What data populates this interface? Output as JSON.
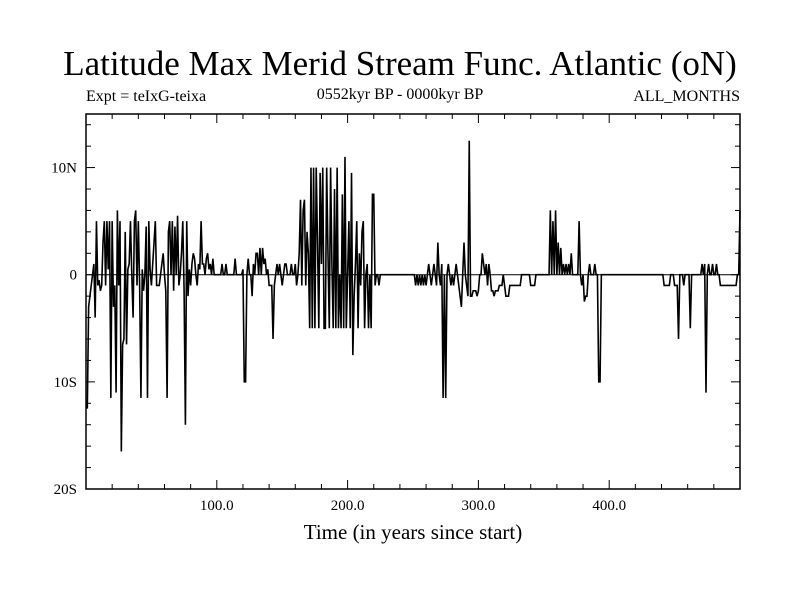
{
  "header": {
    "title": "Latitude Max Merid Stream Func. Atlantic (oN)",
    "expt": "Expt = teIxG-teixa",
    "period": "0552kyr BP - 0000kyr BP",
    "months": "ALL_MONTHS"
  },
  "chart_data": {
    "type": "line",
    "title": "Latitude Max Merid Stream Func. Atlantic (oN)",
    "xlabel": "Time (in years since start)",
    "ylabel": "",
    "xlim": [
      0,
      500
    ],
    "ylim": [
      -20,
      15
    ],
    "grid": false,
    "x_ticks": [
      {
        "value": 100,
        "label": "100.0"
      },
      {
        "value": 200,
        "label": "200.0"
      },
      {
        "value": 300,
        "label": "300.0"
      },
      {
        "value": 400,
        "label": "400.0"
      }
    ],
    "y_ticks": [
      {
        "value": 10,
        "label": "10N"
      },
      {
        "value": 0,
        "label": "0"
      },
      {
        "value": -10,
        "label": "10S"
      },
      {
        "value": -20,
        "label": "20S"
      }
    ],
    "series": [
      {
        "color": "#000000",
        "x_start": 1,
        "x_step": 1,
        "values": [
          -12.5,
          -3.0,
          -2.0,
          -1.0,
          0.0,
          1.0,
          -4.0,
          5.0,
          -1.0,
          -0.5,
          -1.5,
          -1.0,
          3.0,
          5.0,
          -1.0,
          5.0,
          0.5,
          5.0,
          -11.5,
          5.0,
          -3.0,
          -1.0,
          -11.0,
          6.0,
          -1.0,
          5.0,
          -16.5,
          -6.5,
          -6.0,
          4.0,
          -6.5,
          0.5,
          1.0,
          5.0,
          0.0,
          -4.0,
          5.0,
          6.0,
          -1.0,
          5.0,
          -1.0,
          -11.5,
          0.5,
          -1.5,
          0.0,
          4.5,
          -11.5,
          5.0,
          0.5,
          -1.0,
          1.0,
          3.0,
          5.0,
          -1.0,
          -1.0,
          -1.0,
          0.0,
          1.0,
          2.0,
          0.0,
          -1.5,
          -11.5,
          4.0,
          5.0,
          0.0,
          5.0,
          -1.5,
          4.5,
          0.0,
          5.5,
          -1.0,
          0.0,
          2.0,
          5.0,
          -1.5,
          -14.0,
          5.0,
          -2.0,
          0.5,
          -1.0,
          1.0,
          2.0,
          1.5,
          0.0,
          -1.0,
          1.0,
          0.5,
          5.0,
          1.0,
          1.0,
          0.0,
          1.5,
          2.0,
          0.5,
          1.0,
          0.0,
          1.5,
          0.0,
          0.0,
          0.0,
          0.0,
          0.0,
          0.0,
          1.0,
          0.0,
          0.0,
          1.0,
          0.0,
          0.0,
          0.0,
          0.0,
          0.0,
          0.0,
          1.5,
          0.0,
          0.0,
          0.0,
          0.0,
          0.0,
          0.5,
          -10.0,
          -10.0,
          0.0,
          1.5,
          0.0,
          0.0,
          -2.0,
          1.0,
          0.0,
          2.0,
          2.0,
          0.0,
          2.5,
          0.0,
          2.5,
          1.0,
          1.5,
          0.0,
          0.5,
          -1.0,
          -1.0,
          -1.0,
          -6.0,
          -1.0,
          0.0,
          1.0,
          0.0,
          1.0,
          0.0,
          -1.0,
          0.0,
          1.0,
          1.0,
          0.0,
          0.0,
          0.0,
          1.0,
          0.0,
          0.0,
          1.0,
          -1.0,
          0.0,
          2.0,
          7.0,
          -1.0,
          6.0,
          7.0,
          -1.0,
          4.0,
          2.0,
          -5.0,
          10.0,
          -5.0,
          10.0,
          -5.0,
          10.0,
          3.0,
          -5.0,
          9.5,
          1.0,
          10.0,
          -5.0,
          -5.0,
          10.0,
          2.0,
          -5.0,
          10.0,
          1.0,
          -5.0,
          8.0,
          -5.0,
          10.0,
          -5.0,
          0.0,
          -5.0,
          7.5,
          -5.0,
          11.0,
          -5.0,
          0.0,
          5.0,
          -5.0,
          9.5,
          -7.5,
          -2.0,
          1.0,
          5.0,
          -5.0,
          2.0,
          -1.0,
          4.0,
          5.0,
          -5.0,
          0.0,
          1.0,
          -5.0,
          0.0,
          -5.0,
          7.5,
          7.5,
          -1.0,
          0.0,
          0.0,
          -1.0,
          0.0,
          0.0,
          0.0,
          0.0,
          0.0,
          0.0,
          0.0,
          0.0,
          0.0,
          0.0,
          0.0,
          0.0,
          0.0,
          0.0,
          0.0,
          0.0,
          0.0,
          0.0,
          0.0,
          0.0,
          0.0,
          0.0,
          0.0,
          0.0,
          0.0,
          0.0,
          0.0,
          -1.0,
          0.0,
          -1.0,
          0.0,
          -1.0,
          0.0,
          -1.0,
          0.0,
          -1.0,
          0.0,
          1.0,
          0.0,
          -1.0,
          0.0,
          1.0,
          0.0,
          -1.0,
          3.0,
          0.0,
          -1.0,
          1.0,
          -11.5,
          0.0,
          -11.5,
          0.0,
          1.0,
          0.0,
          -1.0,
          0.0,
          -1.0,
          0.0,
          1.0,
          0.0,
          -1.0,
          -2.0,
          -3.0,
          0.0,
          3.0,
          0.0,
          -1.0,
          -2.0,
          12.5,
          -2.0,
          -2.0,
          -1.5,
          -1.5,
          -1.5,
          -2.0,
          -1.5,
          0.0,
          0.0,
          2.0,
          1.0,
          0.0,
          1.0,
          -1.0,
          1.0,
          0.0,
          -1.5,
          -1.5,
          -2.0,
          -1.5,
          -1.5,
          -1.5,
          -1.0,
          -1.0,
          -1.0,
          0.0,
          -1.0,
          -2.0,
          -2.0,
          -2.0,
          -1.0,
          -1.0,
          -1.0,
          -1.0,
          -1.0,
          -1.0,
          -1.0,
          -1.0,
          -1.0,
          0.0,
          0.0,
          0.0,
          0.0,
          0.0,
          0.0,
          0.0,
          -1.0,
          -1.0,
          -1.0,
          -1.0,
          0.0,
          0.0,
          0.0,
          0.0,
          0.0,
          0.0,
          0.0,
          0.0,
          0.0,
          0.0,
          0.0,
          6.0,
          0.0,
          5.0,
          0.0,
          6.0,
          0.0,
          3.0,
          0.0,
          2.5,
          0.0,
          1.0,
          0.0,
          1.0,
          0.0,
          1.0,
          0.0,
          2.0,
          0.0,
          0.0,
          0.0,
          0.0,
          0.0,
          5.0,
          0.0,
          -1.0,
          0.0,
          -2.5,
          -2.0,
          -2.0,
          0.0,
          1.0,
          0.0,
          0.0,
          0.0,
          1.0,
          0.0,
          0.0,
          -10.0,
          -10.0,
          0.0,
          0.0,
          0.0,
          0.0,
          0.0,
          0.0,
          0.0,
          0.0,
          0.0,
          0.0,
          0.0,
          0.0,
          0.0,
          0.0,
          0.0,
          0.0,
          0.0,
          0.0,
          0.0,
          0.0,
          0.0,
          0.0,
          0.0,
          0.0,
          0.0,
          0.0,
          0.0,
          0.0,
          0.0,
          0.0,
          0.0,
          0.0,
          0.0,
          0.0,
          0.0,
          0.0,
          0.0,
          0.0,
          0.0,
          0.0,
          0.0,
          0.0,
          0.0,
          0.0,
          0.0,
          0.0,
          0.0,
          0.0,
          -1.0,
          -1.0,
          -1.0,
          -1.0,
          -1.0,
          0.0,
          0.0,
          0.0,
          -1.0,
          -1.0,
          -1.0,
          -6.0,
          0.0,
          0.0,
          0.0,
          -1.0,
          0.0,
          0.0,
          0.0,
          0.0,
          -5.0,
          0.0,
          0.0,
          0.0,
          0.0,
          0.0,
          0.0,
          0.0,
          0.0,
          1.0,
          0.0,
          1.0,
          -11.0,
          0.0,
          1.0,
          0.0,
          0.0,
          1.0,
          0.0,
          0.0,
          1.0,
          0.0,
          0.0,
          -1.0,
          -1.0,
          -1.0,
          -1.0,
          -1.0,
          -1.0,
          -1.0,
          -1.0,
          -1.0,
          -1.0,
          -1.0,
          -1.0,
          -1.0,
          0.0,
          0.0,
          6.0
        ]
      }
    ]
  }
}
